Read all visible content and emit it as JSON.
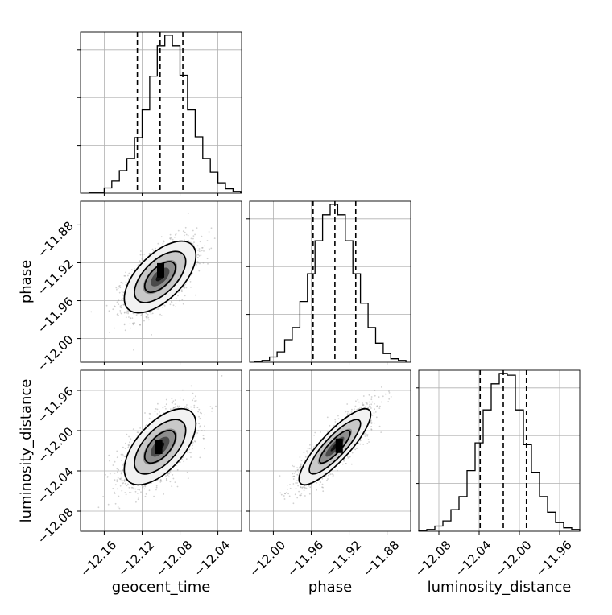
{
  "chart_data": {
    "type": "corner",
    "parameters": [
      "geocent_time",
      "phase",
      "luminosity_distance"
    ],
    "grid": true,
    "quantile_lines": "dashed",
    "ranges": {
      "geocent_time": [
        -12.185,
        -12.015
      ],
      "phase": [
        -12.025,
        -11.855
      ],
      "luminosity_distance": [
        -12.1,
        -11.94
      ]
    },
    "ticks": {
      "geocent_time": [
        -12.16,
        -12.12,
        -12.08,
        -12.04
      ],
      "phase": [
        -12.0,
        -11.96,
        -11.92,
        -11.88
      ],
      "luminosity_distance": [
        -12.08,
        -12.04,
        -12.0,
        -11.96
      ]
    },
    "tick_labels": {
      "geocent_time": [
        "−12.16",
        "−12.12",
        "−12.08",
        "−12.04"
      ],
      "phase": [
        "−12.00",
        "−11.96",
        "−11.92",
        "−11.88"
      ],
      "luminosity_distance": [
        "−12.08",
        "−12.04",
        "−12.00",
        "−11.96"
      ]
    },
    "axis_labels": {
      "geocent_time": "geocent_time",
      "phase": "phase",
      "luminosity_distance": "luminosity_distance"
    },
    "quantiles": {
      "geocent_time": [
        -12.125,
        -12.101,
        -12.077
      ],
      "phase": [
        -11.958,
        -11.935,
        -11.913
      ],
      "luminosity_distance": [
        -12.039,
        -12.016,
        -11.993
      ]
    },
    "marginals": {
      "geocent_time": {
        "edges": [
          -12.176,
          -12.168,
          -12.16,
          -12.152,
          -12.144,
          -12.136,
          -12.128,
          -12.12,
          -12.112,
          -12.104,
          -12.096,
          -12.088,
          -12.08,
          -12.072,
          -12.064,
          -12.056,
          -12.048,
          -12.04,
          -12.032,
          -12.024,
          -12.016
        ],
        "counts": [
          1,
          1,
          6,
          14,
          26,
          40,
          64,
          96,
          135,
          170,
          182,
          170,
          136,
          96,
          65,
          40,
          24,
          12,
          5,
          2
        ]
      },
      "phase": {
        "edges": [
          -12.02,
          -12.012,
          -12.004,
          -11.996,
          -11.988,
          -11.98,
          -11.972,
          -11.964,
          -11.956,
          -11.948,
          -11.94,
          -11.932,
          -11.924,
          -11.916,
          -11.908,
          -11.9,
          -11.892,
          -11.884,
          -11.876,
          -11.868,
          -11.86
        ],
        "counts": [
          1,
          2,
          6,
          12,
          26,
          40,
          70,
          102,
          140,
          170,
          182,
          170,
          140,
          102,
          68,
          40,
          22,
          10,
          4,
          2
        ]
      },
      "luminosity_distance": {
        "edges": [
          -12.1,
          -12.092,
          -12.084,
          -12.076,
          -12.068,
          -12.06,
          -12.052,
          -12.044,
          -12.036,
          -12.028,
          -12.02,
          -12.012,
          -12.004,
          -11.996,
          -11.988,
          -11.98,
          -11.972,
          -11.964,
          -11.956,
          -11.948,
          -11.94
        ],
        "counts": [
          1,
          2,
          6,
          12,
          25,
          40,
          70,
          102,
          140,
          170,
          182,
          180,
          140,
          100,
          68,
          40,
          22,
          10,
          4,
          2
        ]
      }
    },
    "joint": [
      {
        "x": "geocent_time",
        "y": "phase",
        "mean": [
          -12.101,
          -11.935
        ],
        "sd": [
          0.018,
          0.018
        ],
        "rho": 0.6,
        "peak": [
          -12.1,
          -11.928
        ]
      },
      {
        "x": "geocent_time",
        "y": "luminosity_distance",
        "mean": [
          -12.101,
          -12.016
        ],
        "sd": [
          0.018,
          0.018
        ],
        "rho": 0.6,
        "peak": [
          -12.102,
          -12.016
        ]
      },
      {
        "x": "phase",
        "y": "luminosity_distance",
        "mean": [
          -11.935,
          -12.016
        ],
        "sd": [
          0.018,
          0.018
        ],
        "rho": 0.85,
        "peak": [
          -11.93,
          -12.015
        ]
      }
    ]
  }
}
